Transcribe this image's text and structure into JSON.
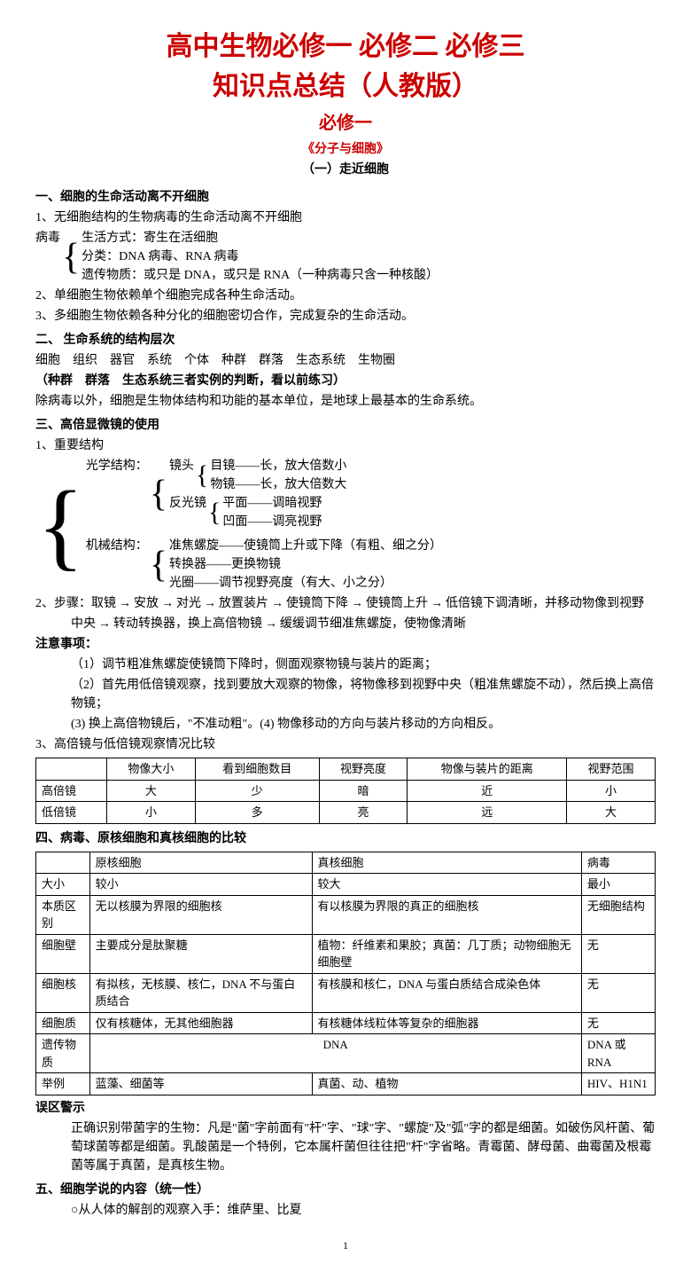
{
  "title": {
    "line1": "高中生物必修一 必修二 必修三",
    "line2": "知识点总结（人教版）",
    "sub1": "必修一",
    "sub2": "《分子与细胞》",
    "sub3": "（一）走近细胞"
  },
  "s1": {
    "heading": "一、细胞的生命活动离不开细胞",
    "p1": "1、无细胞结构的生物病毒的生命活动离不开细胞",
    "virus_label": "病毒",
    "v1": "生活方式：寄生在活细胞",
    "v2": "分类：DNA 病毒、RNA 病毒",
    "v3": "遗传物质：或只是 DNA，或只是 RNA（一种病毒只含一种核酸）",
    "p2": "2、单细胞生物依赖单个细胞完成各种生命活动。",
    "p3": "3、多细胞生物依赖各种分化的细胞密切合作，完成复杂的生命活动。"
  },
  "s2": {
    "heading": "二、 生命系统的结构层次",
    "levels": "细胞　组织　器官　系统　个体　种群　群落　生态系统　生物圈",
    "note": "（种群　群落　生态系统三者实例的判断，看以前练习）",
    "p1": "除病毒以外，细胞是生物体结构和功能的基本单位，是地球上最基本的生命系统。"
  },
  "s3": {
    "heading": "三、高倍显微镜的使用",
    "p1": "1、重要结构",
    "optical_label": "光学结构：",
    "lens_label": "镜头",
    "lens1": "目镜——长，放大倍数小",
    "lens2": "物镜——长，放大倍数大",
    "mirror_label": "反光镜",
    "mirror1": "平面——调暗视野",
    "mirror2": "凹面——调亮视野",
    "mech_label": "机械结构：",
    "mech1": "准焦螺旋——使镜筒上升或下降（有粗、细之分）",
    "mech2": "转换器——更换物镜",
    "mech3": "光圈——调节视野亮度（有大、小之分）",
    "p2a": "2、步骤：取镜",
    "step2": "安放",
    "step3": "对光",
    "step4": "放置装片",
    "step5": "使镜筒下降",
    "step6": "使镜筒上升",
    "step7": "低倍镜下调清晰，并移动物像到视野",
    "p2b_pre": "中央",
    "p2b_1": "转动转换器，换上高倍物镜",
    "p2b_2": "缓缓调节细准焦螺旋，使物像清晰",
    "notes_h": "注意事项：",
    "n1": "（1）调节粗准焦螺旋使镜筒下降时，侧面观察物镜与装片的距离；",
    "n2": "（2）首先用低倍镜观察，找到要放大观察的物像，将物像移到视野中央（粗准焦螺旋不动），然后换上高倍物镜；",
    "n3": "(3) 换上高倍物镜后，\"不准动粗\"。(4) 物像移动的方向与装片移动的方向相反。",
    "p3": "3、高倍镜与低倍镜观察情况比较"
  },
  "t1": {
    "h": [
      "",
      "物像大小",
      "看到细胞数目",
      "视野亮度",
      "物像与装片的距离",
      "视野范围"
    ],
    "r1": [
      "高倍镜",
      "大",
      "少",
      "暗",
      "近",
      "小"
    ],
    "r2": [
      "低倍镜",
      "小",
      "多",
      "亮",
      "远",
      "大"
    ]
  },
  "s4": {
    "heading": "四、病毒、原核细胞和真核细胞的比较"
  },
  "t2": {
    "h": [
      "",
      "原核细胞",
      "真核细胞",
      "病毒"
    ],
    "r1": [
      "大小",
      "较小",
      "较大",
      "最小"
    ],
    "r2": [
      "本质区别",
      "无以核膜为界限的细胞核",
      "有以核膜为界限的真正的细胞核",
      "无细胞结构"
    ],
    "r3": [
      "细胞壁",
      "主要成分是肽聚糖",
      "植物：纤维素和果胶；真菌：几丁质；动物细胞无细胞壁",
      "无"
    ],
    "r4": [
      "细胞核",
      "有拟核，无核膜、核仁，DNA 不与蛋白质结合",
      "有核膜和核仁，DNA 与蛋白质结合成染色体",
      "无"
    ],
    "r5": [
      "细胞质",
      "仅有核糖体，无其他细胞器",
      "有核糖体线粒体等复杂的细胞器",
      "无"
    ],
    "r6_label": "遗传物质",
    "r6_mid": "DNA",
    "r6_last": "DNA 或 RNA",
    "r7": [
      "举例",
      "蓝藻、细菌等",
      "真菌、动、植物",
      "HIV、H1N1"
    ]
  },
  "warn": {
    "h": "误区警示",
    "p": "正确识别带菌字的生物：凡是\"菌\"字前面有\"杆\"字、\"球\"字、\"螺旋\"及\"弧\"字的都是细菌。如破伤风杆菌、葡萄球菌等都是细菌。乳酸菌是一个特例，它本属杆菌但往往把\"杆\"字省略。青霉菌、酵母菌、曲霉菌及根霉菌等属于真菌，是真核生物。"
  },
  "s5": {
    "heading": "五、细胞学说的内容（统一性）",
    "p1": "○从人体的解剖的观察入手：维萨里、比夏"
  },
  "pagenum": "1"
}
